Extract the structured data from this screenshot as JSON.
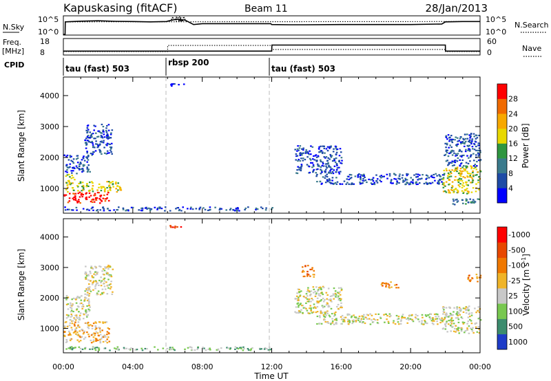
{
  "header": {
    "station": "Kapuskasing (fitACF)",
    "beam": "Beam 11",
    "date": "28/Jan/2013"
  },
  "chart_data": [
    {
      "type": "line",
      "panel": "noise",
      "left_label": "N.Sky",
      "left_ticks": [
        "10^5",
        "10^0"
      ],
      "right_label": "N.Search",
      "right_ticks": [
        "10^5",
        "10^0"
      ],
      "series": [
        {
          "name": "N.Sky",
          "style": "solid",
          "x": [
            0.0,
            0.1,
            0.11,
            1.0,
            2.0,
            3.0,
            4.0,
            5.0,
            5.95,
            6.0,
            6.5,
            7.0,
            7.5,
            8.0,
            9.0,
            10.0,
            11.0,
            11.95,
            12.0,
            13.0,
            14.0,
            16.0,
            18.0,
            20.0,
            21.8,
            22.0,
            23.0,
            24.0
          ],
          "y": [
            0.0,
            0.0,
            0.7,
            0.74,
            0.76,
            0.73,
            0.72,
            0.7,
            0.72,
            0.74,
            0.85,
            0.8,
            0.55,
            0.6,
            0.6,
            0.6,
            0.6,
            0.6,
            0.55,
            0.54,
            0.54,
            0.55,
            0.55,
            0.55,
            0.58,
            0.7,
            0.72,
            0.72
          ]
        },
        {
          "name": "N.Search",
          "style": "dotted",
          "x": [
            0.1,
            24.0
          ],
          "y": [
            0.7,
            0.72
          ]
        }
      ]
    },
    {
      "type": "line",
      "panel": "freq",
      "left_label": "Freq.",
      "left_unit": "[MHz]",
      "left_ticks": [
        "18",
        "8"
      ],
      "right_label": "Nave",
      "right_ticks": [
        "60",
        "0"
      ],
      "series": [
        {
          "name": "Freq.",
          "style": "solid",
          "x": [
            0.0,
            6.0,
            6.01,
            12.0,
            12.01,
            22.0,
            22.01,
            24.0
          ],
          "y": [
            10.6,
            10.6,
            10.6,
            10.6,
            14.6,
            14.6,
            10.6,
            10.6
          ]
        },
        {
          "name": "Nave",
          "style": "dotted",
          "x": [
            0.0,
            6.0,
            6.01,
            12.0,
            12.01,
            22.0,
            22.01,
            24.0
          ],
          "y": [
            14,
            14,
            38,
            38,
            22,
            22,
            14,
            14
          ]
        }
      ]
    },
    {
      "type": "table",
      "panel": "cpid",
      "label": "CPID",
      "segments": [
        {
          "start": 0.0,
          "end": 6.0,
          "label": "tau (fast) 503"
        },
        {
          "start": 6.0,
          "end": 12.0,
          "label": "rbsp 200"
        },
        {
          "start": 12.0,
          "end": 24.0,
          "label": "tau (fast) 503"
        }
      ]
    },
    {
      "type": "heatmap",
      "panel": "power",
      "ylabel": "Slant Range [km]",
      "ylim": [
        200,
        4600
      ],
      "yticks": [
        1000,
        2000,
        3000,
        4000
      ],
      "xlim": [
        0,
        24
      ],
      "colorbar": {
        "label": "Power [dB]",
        "ticks": [
          "4",
          "8",
          "12",
          "16",
          "20",
          "24",
          "28"
        ],
        "colors": [
          "#0000ff",
          "#1e4ba6",
          "#3a7a8c",
          "#2f9640",
          "#e8d800",
          "#f7a800",
          "#f06a00",
          "#ff0000"
        ]
      },
      "regions": [
        {
          "t0": 0.0,
          "t1": 2.6,
          "r0": 550,
          "r1": 900,
          "level": 7
        },
        {
          "t0": 0.1,
          "t1": 3.3,
          "r0": 900,
          "r1": 1250,
          "level": 4
        },
        {
          "t0": 0.1,
          "t1": 0.6,
          "r0": 1250,
          "r1": 1500,
          "level": 4
        },
        {
          "t0": 0.0,
          "t1": 1.5,
          "r0": 1500,
          "r1": 2100,
          "level": 1
        },
        {
          "t0": 1.2,
          "t1": 2.8,
          "r0": 2100,
          "r1": 3100,
          "level": 1
        },
        {
          "t0": 0.0,
          "t1": 12.0,
          "r0": 300,
          "r1": 420,
          "level": 1
        },
        {
          "t0": 13.3,
          "t1": 16.0,
          "r0": 1500,
          "r1": 2400,
          "level": 1
        },
        {
          "t0": 14.5,
          "t1": 21.9,
          "r0": 1150,
          "r1": 1500,
          "level": 1
        },
        {
          "t0": 21.8,
          "t1": 24.0,
          "r0": 850,
          "r1": 1750,
          "level": 4
        },
        {
          "t0": 21.9,
          "t1": 24.0,
          "r0": 1750,
          "r1": 2800,
          "level": 1
        },
        {
          "t0": 22.3,
          "t1": 24.0,
          "r0": 500,
          "r1": 700,
          "level": 2
        },
        {
          "t0": 6.0,
          "t1": 6.9,
          "r0": 4320,
          "r1": 4400,
          "level": 0
        }
      ]
    },
    {
      "type": "heatmap",
      "panel": "velocity",
      "ylabel": "Slant Range [km]",
      "ylim": [
        200,
        4600
      ],
      "yticks": [
        1000,
        2000,
        3000,
        4000
      ],
      "xlim": [
        0,
        24
      ],
      "xlabel": "Time UT",
      "xticks": [
        "00:00",
        "04:00",
        "08:00",
        "12:00",
        "16:00",
        "20:00",
        "00:00"
      ],
      "colorbar": {
        "label": "Velocity [m s^-1]",
        "ticks": [
          "1000",
          "500",
          "100",
          "25",
          "-25",
          "-100",
          "-500",
          "-1000"
        ],
        "colors": [
          "#1e3cc8",
          "#3c8c6e",
          "#78c850",
          "#c8c8c8",
          "#f0b428",
          "#f07800",
          "#e84800",
          "#ff0000"
        ]
      },
      "regions": [
        {
          "t0": 0.0,
          "t1": 2.6,
          "r0": 550,
          "r1": 1250,
          "level": 4
        },
        {
          "t0": 0.1,
          "t1": 1.5,
          "r0": 1250,
          "r1": 2100,
          "level": 3
        },
        {
          "t0": 1.2,
          "t1": 2.8,
          "r0": 2100,
          "r1": 3100,
          "level": 3
        },
        {
          "t0": 0.0,
          "t1": 12.0,
          "r0": 300,
          "r1": 420,
          "level": 2
        },
        {
          "t0": 13.3,
          "t1": 16.0,
          "r0": 1500,
          "r1": 2400,
          "level": 3
        },
        {
          "t0": 14.5,
          "t1": 21.9,
          "r0": 1150,
          "r1": 1500,
          "level": 3
        },
        {
          "t0": 21.8,
          "t1": 24.0,
          "r0": 850,
          "r1": 1750,
          "level": 3
        },
        {
          "t0": 13.7,
          "t1": 14.4,
          "r0": 2700,
          "r1": 3100,
          "level": 5
        },
        {
          "t0": 18.2,
          "t1": 19.3,
          "r0": 2350,
          "r1": 2550,
          "level": 5
        },
        {
          "t0": 23.2,
          "t1": 24.0,
          "r0": 2550,
          "r1": 2800,
          "level": 5
        },
        {
          "t0": 6.0,
          "t1": 6.9,
          "r0": 4320,
          "r1": 4400,
          "level": 7
        }
      ]
    }
  ]
}
